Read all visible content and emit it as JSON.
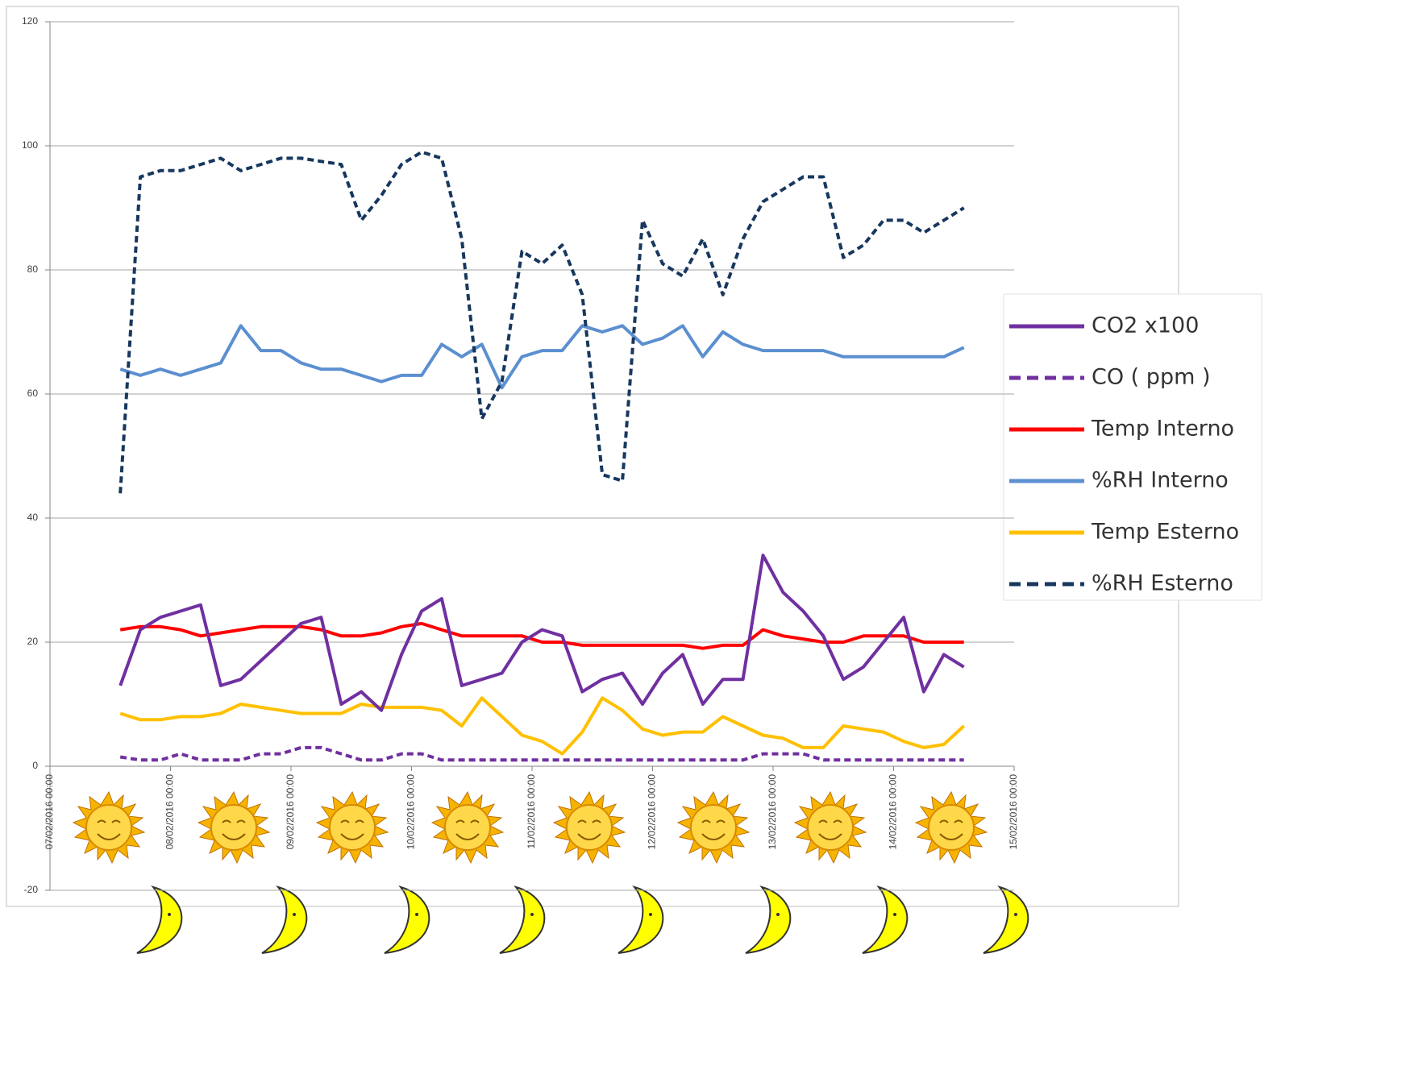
{
  "chart_data": {
    "type": "line",
    "x": [
      "07/02/2016 14:00",
      "07/02/2016 18:00",
      "07/02/2016 22:00",
      "08/02/2016 02:00",
      "08/02/2016 06:00",
      "08/02/2016 10:00",
      "08/02/2016 14:00",
      "08/02/2016 18:00",
      "08/02/2016 22:00",
      "09/02/2016 02:00",
      "09/02/2016 06:00",
      "09/02/2016 10:00",
      "09/02/2016 14:00",
      "09/02/2016 18:00",
      "09/02/2016 22:00",
      "10/02/2016 02:00",
      "10/02/2016 06:00",
      "10/02/2016 10:00",
      "10/02/2016 14:00",
      "10/02/2016 18:00",
      "10/02/2016 22:00",
      "11/02/2016 02:00",
      "11/02/2016 06:00",
      "11/02/2016 10:00",
      "11/02/2016 14:00",
      "11/02/2016 18:00",
      "11/02/2016 22:00",
      "12/02/2016 02:00",
      "12/02/2016 06:00",
      "12/02/2016 10:00",
      "12/02/2016 14:00",
      "12/02/2016 18:00",
      "12/02/2016 22:00",
      "13/02/2016 02:00",
      "13/02/2016 06:00",
      "13/02/2016 10:00",
      "13/02/2016 14:00",
      "13/02/2016 18:00",
      "13/02/2016 22:00",
      "14/02/2016 02:00",
      "14/02/2016 06:00",
      "14/02/2016 10:00",
      "14/02/2016 14:00"
    ],
    "xlim": [
      "07/02/2016 00:00",
      "15/02/2016 00:00"
    ],
    "xticks": [
      "07/02/2016 00:00",
      "08/02/2016 00:00",
      "09/02/2016 00:00",
      "10/02/2016 00:00",
      "11/02/2016 00:00",
      "12/02/2016 00:00",
      "13/02/2016 00:00",
      "14/02/2016 00:00",
      "15/02/2016 00:00"
    ],
    "ylim": [
      -20,
      120
    ],
    "yticks": [
      -20,
      0,
      20,
      40,
      60,
      80,
      100,
      120
    ],
    "grid": true,
    "legend": "right",
    "series": [
      {
        "name": "CO2 x100",
        "color": "#7030a0",
        "dashed": false,
        "values": [
          13,
          22,
          24,
          25,
          26,
          13,
          14,
          17,
          20,
          23,
          24,
          10,
          12,
          9,
          18,
          25,
          27,
          13,
          14,
          15,
          20,
          22,
          21,
          12,
          14,
          15,
          10,
          15,
          18,
          10,
          14,
          14,
          34,
          28,
          25,
          21,
          14,
          16,
          20,
          24,
          12,
          18,
          16
        ]
      },
      {
        "name": "CO ( ppm )",
        "color": "#7030a0",
        "dashed": true,
        "values": [
          1.5,
          1,
          1,
          2,
          1,
          1,
          1,
          2,
          2,
          3,
          3,
          2,
          1,
          1,
          2,
          2,
          1,
          1,
          1,
          1,
          1,
          1,
          1,
          1,
          1,
          1,
          1,
          1,
          1,
          1,
          1,
          1,
          2,
          2,
          2,
          1,
          1,
          1,
          1,
          1,
          1,
          1,
          1
        ]
      },
      {
        "name": "Temp Interno",
        "color": "#ff0000",
        "dashed": false,
        "values": [
          22,
          22.5,
          22.5,
          22,
          21,
          21.5,
          22,
          22.5,
          22.5,
          22.5,
          22,
          21,
          21,
          21.5,
          22.5,
          23,
          22,
          21,
          21,
          21,
          21,
          20,
          20,
          19.5,
          19.5,
          19.5,
          19.5,
          19.5,
          19.5,
          19,
          19.5,
          19.5,
          22,
          21,
          20.5,
          20,
          20,
          21,
          21,
          21,
          20,
          20,
          20
        ]
      },
      {
        "name": "%RH Interno",
        "color": "#5b8fd0",
        "dashed": false,
        "values": [
          64,
          63,
          64,
          63,
          64,
          65,
          71,
          67,
          67,
          65,
          64,
          64,
          63,
          62,
          63,
          63,
          68,
          66,
          68,
          61,
          66,
          67,
          67,
          71,
          70,
          71,
          68,
          69,
          71,
          66,
          70,
          68,
          67,
          67,
          67,
          67,
          66,
          66,
          66,
          66,
          66,
          66,
          67.5
        ]
      },
      {
        "name": "Temp  Esterno",
        "color": "#ffc000",
        "dashed": false,
        "values": [
          8.5,
          7.5,
          7.5,
          8,
          8,
          8.5,
          10,
          9.5,
          9,
          8.5,
          8.5,
          8.5,
          10,
          9.5,
          9.5,
          9.5,
          9,
          6.5,
          11,
          8,
          5,
          4,
          2,
          5.5,
          11,
          9,
          6,
          5,
          5.5,
          5.5,
          8,
          6.5,
          5,
          4.5,
          3,
          3,
          6.5,
          6,
          5.5,
          4,
          3,
          3.5,
          6.5
        ]
      },
      {
        "name": "%RH Esterno",
        "color": "#17375e",
        "dashed": true,
        "values": [
          44,
          95,
          96,
          96,
          97,
          98,
          96,
          97,
          98,
          98,
          97.5,
          97,
          88,
          92,
          97,
          99,
          98,
          85,
          56,
          62,
          83,
          81,
          84,
          76,
          47,
          46,
          88,
          81,
          79,
          85,
          76,
          85,
          91,
          93,
          95,
          95,
          82,
          84,
          88,
          88,
          86,
          88,
          90
        ]
      }
    ]
  }
}
